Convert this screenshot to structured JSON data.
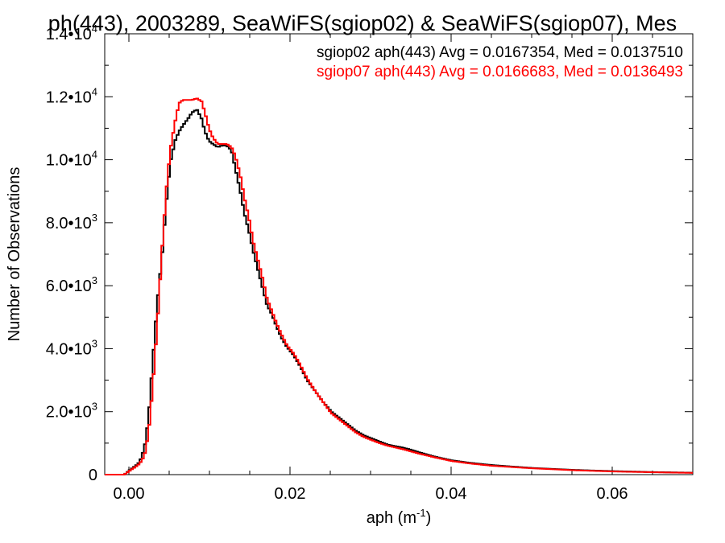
{
  "chart_data": {
    "type": "line",
    "title": "ph(443), 2003289, SeaWiFS(sgiop02) & SeaWiFS(sgiop07), Mes",
    "xlabel": "aph (m",
    "xlabel_sup": "-1",
    "xlabel_close": ")",
    "ylabel": "Number of Observations",
    "xlim": [
      -0.003,
      0.07
    ],
    "ylim": [
      0,
      14000
    ],
    "grid": false,
    "x_ticks": [
      {
        "value": 0.0,
        "label": "0.00"
      },
      {
        "value": 0.02,
        "label": "0.02"
      },
      {
        "value": 0.04,
        "label": "0.04"
      },
      {
        "value": 0.06,
        "label": "0.06"
      }
    ],
    "y_ticks": [
      {
        "value": 0,
        "mant": "0",
        "exp": ""
      },
      {
        "value": 2000,
        "mant": "2.0•10",
        "exp": "3"
      },
      {
        "value": 4000,
        "mant": "4.0•10",
        "exp": "3"
      },
      {
        "value": 6000,
        "mant": "6.0•10",
        "exp": "3"
      },
      {
        "value": 8000,
        "mant": "8.0•10",
        "exp": "3"
      },
      {
        "value": 10000,
        "mant": "1.0•10",
        "exp": "4"
      },
      {
        "value": 12000,
        "mant": "1.2•10",
        "exp": "4"
      },
      {
        "value": 14000,
        "mant": "1.4•10",
        "exp": "4"
      }
    ],
    "series": [
      {
        "name": "sgiop02 aph(443) Avg = 0.0167354, Med = 0.0137510",
        "color": "#000000",
        "x": [
          -0.003,
          -0.0007,
          0.0,
          0.0007,
          0.0012,
          0.0018,
          0.0023,
          0.0028,
          0.0034,
          0.004,
          0.0045,
          0.005,
          0.0056,
          0.0061,
          0.0066,
          0.0072,
          0.0077,
          0.0083,
          0.0089,
          0.0093,
          0.0098,
          0.0103,
          0.0109,
          0.0114,
          0.012,
          0.0126,
          0.0131,
          0.0137,
          0.0142,
          0.0148,
          0.0153,
          0.0159,
          0.0165,
          0.017,
          0.0176,
          0.0182,
          0.0188,
          0.0195,
          0.0203,
          0.021,
          0.022,
          0.023,
          0.024,
          0.025,
          0.026,
          0.027,
          0.028,
          0.029,
          0.03,
          0.031,
          0.032,
          0.033,
          0.034,
          0.035,
          0.036,
          0.037,
          0.038,
          0.04,
          0.042,
          0.045,
          0.05,
          0.055,
          0.06,
          0.065,
          0.07
        ],
        "values": [
          0,
          0,
          150,
          280,
          400,
          850,
          1800,
          3500,
          5500,
          7000,
          8600,
          9900,
          10600,
          10900,
          11100,
          11300,
          11500,
          11600,
          11300,
          10900,
          10600,
          10500,
          10400,
          10450,
          10450,
          10300,
          9700,
          9000,
          8300,
          7700,
          7100,
          6500,
          5900,
          5400,
          5100,
          4700,
          4350,
          4050,
          3800,
          3500,
          3000,
          2650,
          2300,
          2000,
          1800,
          1600,
          1400,
          1250,
          1150,
          1050,
          950,
          900,
          850,
          780,
          700,
          630,
          560,
          450,
          380,
          300,
          210,
          150,
          110,
          80,
          60
        ]
      },
      {
        "name": "sgiop07 aph(443) Avg = 0.0166683, Med = 0.0136493",
        "color": "#ff0000",
        "x": [
          -0.003,
          -0.0007,
          0.0,
          0.0007,
          0.0012,
          0.0018,
          0.0023,
          0.0028,
          0.0034,
          0.004,
          0.0045,
          0.005,
          0.0056,
          0.0061,
          0.0066,
          0.0072,
          0.0077,
          0.0083,
          0.0089,
          0.0093,
          0.0098,
          0.0103,
          0.0109,
          0.0114,
          0.012,
          0.0126,
          0.0131,
          0.0137,
          0.0142,
          0.0148,
          0.0153,
          0.0159,
          0.0165,
          0.017,
          0.0176,
          0.0182,
          0.0188,
          0.0195,
          0.0203,
          0.021,
          0.022,
          0.023,
          0.024,
          0.025,
          0.026,
          0.027,
          0.028,
          0.029,
          0.03,
          0.031,
          0.032,
          0.033,
          0.034,
          0.035,
          0.036,
          0.037,
          0.038,
          0.04,
          0.042,
          0.045,
          0.05,
          0.055,
          0.06,
          0.065,
          0.07
        ],
        "values": [
          0,
          0,
          130,
          250,
          350,
          600,
          1300,
          2700,
          4800,
          7200,
          9000,
          10300,
          11200,
          11800,
          11900,
          11900,
          11900,
          11950,
          11850,
          11500,
          11000,
          10700,
          10500,
          10500,
          10500,
          10400,
          10100,
          9500,
          8800,
          8100,
          7400,
          6800,
          6200,
          5600,
          5200,
          4800,
          4450,
          4100,
          3850,
          3550,
          3050,
          2650,
          2300,
          1950,
          1750,
          1550,
          1350,
          1200,
          1100,
          1000,
          920,
          860,
          800,
          730,
          660,
          600,
          540,
          430,
          360,
          280,
          200,
          140,
          100,
          75,
          55
        ]
      }
    ]
  }
}
